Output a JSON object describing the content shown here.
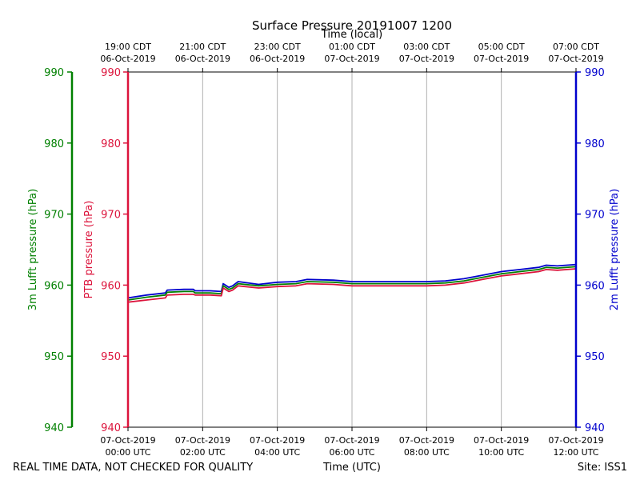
{
  "chart_data": {
    "type": "line",
    "title": "Surface Pressure 20191007 1200",
    "top_axis_label": "Time (local)",
    "bottom_axis_label": "Time (UTC)",
    "left_outer_label": "3m Lufft pressure (hPa)",
    "left_inner_label": "PTB pressure (hPa)",
    "right_label": "2m Lufft pressure (hPa)",
    "footer_left": "REAL TIME DATA, NOT CHECKED FOR QUALITY",
    "footer_right": "Site: ISS1",
    "x_range_hours_utc": [
      0,
      12
    ],
    "ylim": [
      940,
      990
    ],
    "y_ticks": [
      "940",
      "950",
      "960",
      "970",
      "980",
      "990"
    ],
    "bottom_ticks": [
      {
        "hour": 0,
        "date": "07-Oct-2019",
        "time": "00:00 UTC"
      },
      {
        "hour": 2,
        "date": "07-Oct-2019",
        "time": "02:00 UTC"
      },
      {
        "hour": 4,
        "date": "07-Oct-2019",
        "time": "04:00 UTC"
      },
      {
        "hour": 6,
        "date": "07-Oct-2019",
        "time": "06:00 UTC"
      },
      {
        "hour": 8,
        "date": "07-Oct-2019",
        "time": "08:00 UTC"
      },
      {
        "hour": 10,
        "date": "07-Oct-2019",
        "time": "10:00 UTC"
      },
      {
        "hour": 12,
        "date": "07-Oct-2019",
        "time": "12:00 UTC"
      }
    ],
    "top_ticks": [
      {
        "hour": 0,
        "time": "19:00 CDT",
        "date": "06-Oct-2019"
      },
      {
        "hour": 2,
        "time": "21:00 CDT",
        "date": "06-Oct-2019"
      },
      {
        "hour": 4,
        "time": "23:00 CDT",
        "date": "06-Oct-2019"
      },
      {
        "hour": 6,
        "time": "01:00 CDT",
        "date": "07-Oct-2019"
      },
      {
        "hour": 8,
        "time": "03:00 CDT",
        "date": "07-Oct-2019"
      },
      {
        "hour": 10,
        "time": "05:00 CDT",
        "date": "07-Oct-2019"
      },
      {
        "hour": 12,
        "time": "07:00 CDT",
        "date": "07-Oct-2019"
      }
    ],
    "colors": {
      "left_outer": "#008000",
      "left_inner": "#dc143c",
      "right": "#0000cd",
      "grid": "#b0b0b0"
    },
    "series": [
      {
        "name": "2m Lufft pressure",
        "color": "#0000cd",
        "x": [
          0,
          0.5,
          1.0,
          1.05,
          1.5,
          1.75,
          1.8,
          2.2,
          2.5,
          2.55,
          2.7,
          2.8,
          2.95,
          3.5,
          4.0,
          4.5,
          4.8,
          5.5,
          6.0,
          7.0,
          8.0,
          8.5,
          9.0,
          9.5,
          10.0,
          10.5,
          11.0,
          11.2,
          11.5,
          12.0
        ],
        "values": [
          958.2,
          958.6,
          958.9,
          959.3,
          959.4,
          959.4,
          959.2,
          959.2,
          959.1,
          960.2,
          959.7,
          959.9,
          960.5,
          960.1,
          960.4,
          960.5,
          960.8,
          960.7,
          960.5,
          960.5,
          960.5,
          960.6,
          960.9,
          961.4,
          961.9,
          962.2,
          962.5,
          962.8,
          962.7,
          962.9
        ]
      },
      {
        "name": "3m Lufft pressure",
        "color": "#008000",
        "x": [
          0,
          0.5,
          1.0,
          1.05,
          1.5,
          1.75,
          1.8,
          2.2,
          2.5,
          2.55,
          2.7,
          2.8,
          2.95,
          3.5,
          4.0,
          4.5,
          4.8,
          5.5,
          6.0,
          7.0,
          8.0,
          8.5,
          9.0,
          9.5,
          10.0,
          10.5,
          11.0,
          11.2,
          11.5,
          12.0
        ],
        "values": [
          957.9,
          958.3,
          958.6,
          959.0,
          959.1,
          959.1,
          958.9,
          958.9,
          958.8,
          959.9,
          959.4,
          959.6,
          960.2,
          959.9,
          960.1,
          960.2,
          960.5,
          960.4,
          960.2,
          960.2,
          960.2,
          960.3,
          960.6,
          961.1,
          961.6,
          961.9,
          962.2,
          962.5,
          962.4,
          962.6
        ]
      },
      {
        "name": "PTB pressure",
        "color": "#dc143c",
        "x": [
          0,
          0.5,
          1.0,
          1.05,
          1.5,
          1.75,
          1.8,
          2.2,
          2.5,
          2.55,
          2.7,
          2.8,
          2.95,
          3.5,
          4.0,
          4.5,
          4.8,
          5.5,
          6.0,
          7.0,
          8.0,
          8.5,
          9.0,
          9.5,
          10.0,
          10.5,
          11.0,
          11.2,
          11.5,
          12.0
        ],
        "values": [
          957.6,
          957.9,
          958.2,
          958.6,
          958.7,
          958.7,
          958.6,
          958.6,
          958.5,
          959.6,
          959.1,
          959.3,
          959.9,
          959.6,
          959.8,
          959.9,
          960.2,
          960.1,
          959.9,
          959.9,
          959.9,
          960.0,
          960.3,
          960.8,
          961.3,
          961.6,
          961.9,
          962.2,
          962.1,
          962.3
        ]
      }
    ]
  }
}
